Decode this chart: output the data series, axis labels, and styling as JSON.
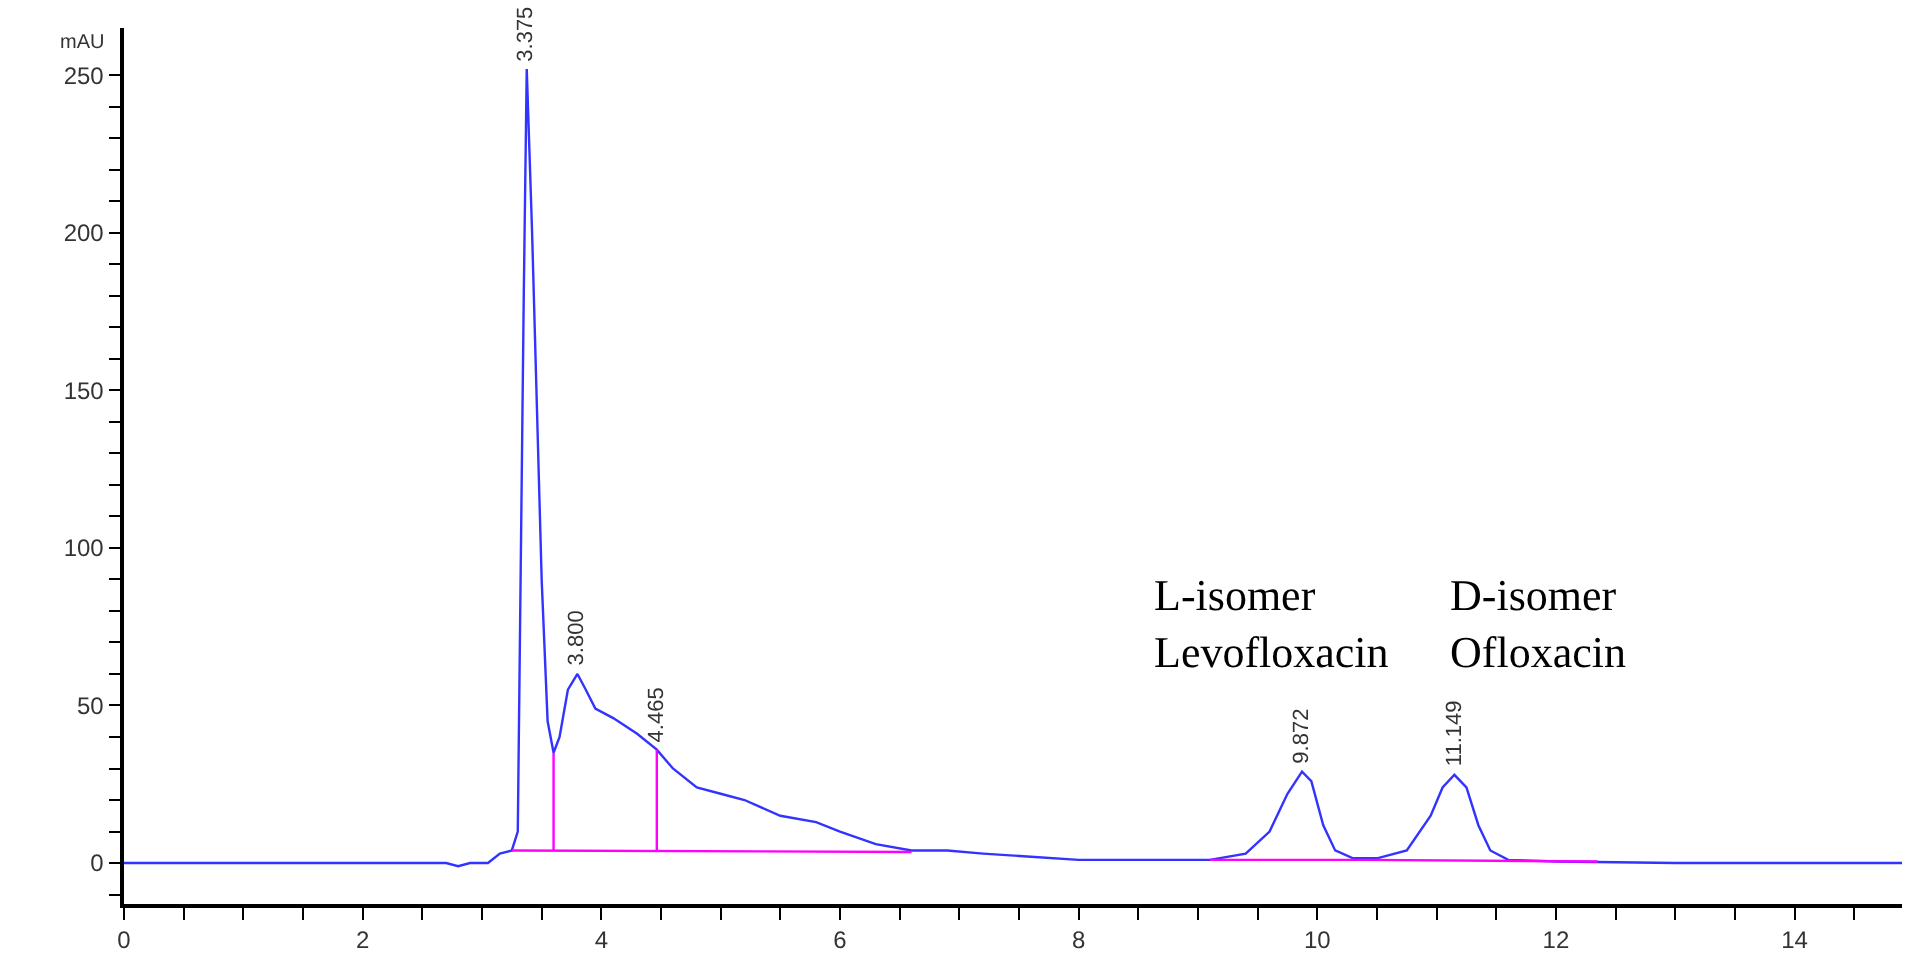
{
  "chart_data": {
    "type": "line",
    "ylabel": "mAU",
    "xlim": [
      0,
      14.9
    ],
    "ylim": [
      -13,
      265
    ],
    "xticks": [
      0,
      {
        "value": 0.5,
        "label": null
      },
      {
        "value": 1,
        "label": null
      },
      {
        "value": 1.5,
        "label": null
      },
      2,
      {
        "value": 2.5,
        "label": null
      },
      {
        "value": 3,
        "label": null
      },
      {
        "value": 3.5,
        "label": null
      },
      4,
      {
        "value": 4.5,
        "label": null
      },
      {
        "value": 5,
        "label": null
      },
      {
        "value": 5.5,
        "label": null
      },
      6,
      {
        "value": 6.5,
        "label": null
      },
      {
        "value": 7,
        "label": null
      },
      {
        "value": 7.5,
        "label": null
      },
      8,
      {
        "value": 8.5,
        "label": null
      },
      {
        "value": 9,
        "label": null
      },
      {
        "value": 9.5,
        "label": null
      },
      10,
      {
        "value": 10.5,
        "label": null
      },
      {
        "value": 11,
        "label": null
      },
      {
        "value": 11.5,
        "label": null
      },
      12,
      {
        "value": 12.5,
        "label": null
      },
      {
        "value": 13,
        "label": null
      },
      {
        "value": 13.5,
        "label": null
      },
      14,
      {
        "value": 14.5,
        "label": null
      }
    ],
    "yticks": [
      {
        "value": -10,
        "label": null
      },
      0,
      {
        "value": 10,
        "label": null
      },
      {
        "value": 20,
        "label": null
      },
      {
        "value": 30,
        "label": null
      },
      {
        "value": 40,
        "label": null
      },
      50,
      {
        "value": 60,
        "label": null
      },
      {
        "value": 70,
        "label": null
      },
      {
        "value": 80,
        "label": null
      },
      {
        "value": 90,
        "label": null
      },
      100,
      {
        "value": 110,
        "label": null
      },
      {
        "value": 120,
        "label": null
      },
      {
        "value": 130,
        "label": null
      },
      {
        "value": 140,
        "label": null
      },
      150,
      {
        "value": 160,
        "label": null
      },
      {
        "value": 170,
        "label": null
      },
      {
        "value": 180,
        "label": null
      },
      {
        "value": 190,
        "label": null
      },
      200,
      {
        "value": 210,
        "label": null
      },
      {
        "value": 220,
        "label": null
      },
      {
        "value": 230,
        "label": null
      },
      {
        "value": 240,
        "label": null
      },
      250
    ],
    "marker": "none",
    "line_style": "solid",
    "series": [
      {
        "color": "#3333ff",
        "x": [
          0,
          2.7,
          2.8,
          2.9,
          3.05,
          3.15,
          3.25,
          3.3,
          3.35,
          3.375,
          3.42,
          3.5,
          3.55,
          3.6,
          3.65,
          3.72,
          3.8,
          3.87,
          3.95,
          4.1,
          4.3,
          4.465,
          4.6,
          4.8,
          5.0,
          5.2,
          5.5,
          5.8,
          6.0,
          6.3,
          6.6,
          6.9,
          7.2,
          7.6,
          8.0,
          8.5,
          9.1,
          9.4,
          9.6,
          9.75,
          9.872,
          9.95,
          10.05,
          10.15,
          10.3,
          10.5,
          10.75,
          10.95,
          11.05,
          11.149,
          11.25,
          11.35,
          11.45,
          11.6,
          12,
          13,
          14.9
        ],
        "values": [
          0,
          0,
          -1,
          0,
          0,
          3,
          4,
          10,
          180,
          252,
          200,
          90,
          45,
          35,
          40,
          55,
          60,
          55,
          49,
          46,
          41,
          36,
          30,
          24,
          22,
          20,
          15,
          13,
          10,
          6,
          4,
          4,
          3,
          2,
          1,
          1,
          1,
          3,
          10,
          22,
          29,
          26,
          12,
          4,
          1.5,
          1.5,
          4,
          15,
          24,
          28,
          24,
          12,
          4,
          1,
          0.5,
          0,
          0
        ]
      },
      {
        "color": "#ff00ff",
        "x": [
          3.25,
          6.6,
          null,
          9.1,
          10.4,
          12.35
        ],
        "values": [
          4,
          3.5,
          null,
          1,
          1,
          0.5
        ]
      },
      {
        "color": "#ff00ff",
        "x": [
          3.6,
          3.6,
          null,
          4.465,
          4.465
        ],
        "values": [
          4,
          35,
          null,
          4,
          36
        ]
      }
    ],
    "annotations": [
      {
        "text": "3.375",
        "x": 3.375,
        "y": 252
      },
      {
        "text": "3.800",
        "x": 3.8,
        "y": 60
      },
      {
        "text": "4.465",
        "x": 4.465,
        "y": 36
      },
      {
        "text": "9.872",
        "x": 9.872,
        "y": 29
      },
      {
        "text": "11.149",
        "x": 11.149,
        "y": 28
      },
      "L-isomer\nLevofloxacin",
      "D-isomer\nOfloxacin"
    ]
  }
}
